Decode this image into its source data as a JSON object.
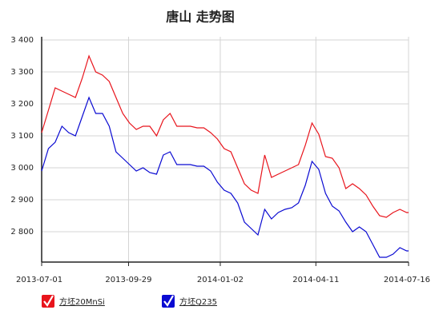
{
  "chart_data": {
    "type": "line",
    "title": "唐山 走势图",
    "x": [
      "2013-07-01",
      "2013-07-08",
      "2013-07-15",
      "2013-07-22",
      "2013-07-29",
      "2013-08-05",
      "2013-08-12",
      "2013-08-19",
      "2013-08-26",
      "2013-09-02",
      "2013-09-09",
      "2013-09-16",
      "2013-09-23",
      "2013-09-30",
      "2013-10-07",
      "2013-10-14",
      "2013-10-21",
      "2013-10-28",
      "2013-11-04",
      "2013-11-11",
      "2013-11-18",
      "2013-11-25",
      "2013-12-02",
      "2013-12-09",
      "2013-12-16",
      "2013-12-23",
      "2013-12-30",
      "2014-01-06",
      "2014-01-13",
      "2014-01-20",
      "2014-01-27",
      "2014-02-03",
      "2014-02-10",
      "2014-02-17",
      "2014-02-24",
      "2014-03-03",
      "2014-03-10",
      "2014-03-17",
      "2014-03-24",
      "2014-03-31",
      "2014-04-07",
      "2014-04-14",
      "2014-04-21",
      "2014-04-28",
      "2014-05-05",
      "2014-05-12",
      "2014-05-19",
      "2014-05-26",
      "2014-06-02",
      "2014-06-09",
      "2014-06-16",
      "2014-06-23",
      "2014-06-30",
      "2014-07-07",
      "2014-07-14",
      "2014-07-16"
    ],
    "series": [
      {
        "name": "方坯20MnSi",
        "color": "#e8141c",
        "values": [
          3110,
          3180,
          3250,
          3240,
          3230,
          3220,
          3280,
          3350,
          3300,
          3290,
          3270,
          3220,
          3170,
          3140,
          3120,
          3130,
          3130,
          3100,
          3150,
          3170,
          3130,
          3130,
          3130,
          3125,
          3125,
          3110,
          3090,
          3060,
          3050,
          3000,
          2950,
          2930,
          2920,
          3040,
          2970,
          2980,
          2990,
          3000,
          3010,
          3070,
          3140,
          3105,
          3035,
          3030,
          3000,
          2935,
          2950,
          2935,
          2915,
          2880,
          2850,
          2845,
          2860,
          2870,
          2860,
          2860
        ]
      },
      {
        "name": "方坯Q235",
        "color": "#0a0ad2",
        "values": [
          2990,
          3060,
          3080,
          3130,
          3110,
          3100,
          3160,
          3220,
          3170,
          3170,
          3130,
          3050,
          3030,
          3010,
          2990,
          3000,
          2985,
          2980,
          3040,
          3050,
          3010,
          3010,
          3010,
          3005,
          3005,
          2990,
          2955,
          2930,
          2920,
          2890,
          2830,
          2810,
          2790,
          2870,
          2840,
          2860,
          2870,
          2875,
          2890,
          2945,
          3020,
          2995,
          2920,
          2880,
          2865,
          2830,
          2800,
          2815,
          2800,
          2760,
          2720,
          2720,
          2730,
          2750,
          2740,
          2740
        ]
      }
    ],
    "xlim": [
      "2013-07-01",
      "2014-07-16"
    ],
    "xticks": [
      "2013-07-01",
      "2013-09-29",
      "2014-01-02",
      "2014-04-11",
      "2014-07-16"
    ],
    "ylim": [
      2705,
      3400
    ],
    "yticks": [
      {
        "value": 2800,
        "label": "2 800"
      },
      {
        "value": 2900,
        "label": "2 900"
      },
      {
        "value": 3000,
        "label": "3 000"
      },
      {
        "value": 3100,
        "label": "3 100"
      },
      {
        "value": 3200,
        "label": "3 200"
      },
      {
        "value": 3300,
        "label": "3 300"
      },
      {
        "value": 3400,
        "label": "3 400"
      }
    ],
    "grid": true
  }
}
